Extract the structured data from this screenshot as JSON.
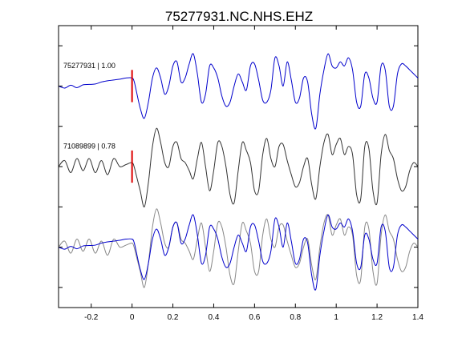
{
  "chart_data": {
    "type": "line",
    "title": "75277931.NC.NHS.EHZ",
    "xlabel": "",
    "ylabel": "",
    "xlim": [
      -0.36,
      1.4
    ],
    "xticks": [
      -0.2,
      0,
      0.2,
      0.4,
      0.6,
      0.8,
      1,
      1.2,
      1.4
    ],
    "xtick_labels": [
      "-0.2",
      "0",
      "0.2",
      "0.4",
      "0.6",
      "0.8",
      "1",
      "1.2",
      "1.4"
    ],
    "ylim": [
      0,
      7
    ],
    "yticks": [
      0.5,
      1.5,
      2.5,
      3.5,
      4.5,
      5.5,
      6.5
    ],
    "grid": false,
    "legend": "none",
    "pick_time": 0,
    "colors": {
      "template": "#0000cc",
      "match": "#333333",
      "overlay_match": "#888888",
      "pick": "#dd0000"
    },
    "traces": [
      {
        "label": "75277931 | 1.00",
        "baseline": 5.5,
        "color": "#0000cc",
        "x": [
          -0.36,
          -0.33,
          -0.3,
          -0.27,
          -0.24,
          -0.21,
          -0.18,
          -0.15,
          -0.12,
          -0.09,
          -0.06,
          -0.03,
          0,
          0.01,
          0.02,
          0.04,
          0.06,
          0.08,
          0.1,
          0.12,
          0.14,
          0.16,
          0.18,
          0.2,
          0.22,
          0.24,
          0.26,
          0.28,
          0.3,
          0.32,
          0.34,
          0.36,
          0.38,
          0.4,
          0.42,
          0.44,
          0.46,
          0.48,
          0.5,
          0.52,
          0.54,
          0.56,
          0.58,
          0.6,
          0.62,
          0.64,
          0.66,
          0.68,
          0.7,
          0.72,
          0.74,
          0.76,
          0.78,
          0.8,
          0.82,
          0.84,
          0.86,
          0.88,
          0.9,
          0.92,
          0.94,
          0.96,
          0.98,
          1,
          1.02,
          1.04,
          1.06,
          1.08,
          1.1,
          1.12,
          1.14,
          1.16,
          1.18,
          1.2,
          1.22,
          1.24,
          1.26,
          1.28,
          1.3,
          1.32,
          1.34,
          1.36,
          1.38,
          1.4
        ],
        "y": [
          0,
          -0.05,
          0.02,
          -0.04,
          0.03,
          0.04,
          0.05,
          0.1,
          0.13,
          0.15,
          0.17,
          0.2,
          0.2,
          0.12,
          -0.1,
          -0.55,
          -0.8,
          -0.4,
          0.2,
          0.45,
          0.2,
          -0.2,
          0.0,
          0.5,
          0.6,
          0.1,
          0.2,
          0.55,
          0.8,
          0.3,
          -0.4,
          -0.2,
          0.5,
          0.45,
          0.2,
          -0.25,
          -0.5,
          -0.4,
          0.0,
          0.3,
          0.1,
          -0.1,
          0.5,
          0.55,
          0.15,
          -0.35,
          -0.4,
          -0.1,
          0.7,
          0.5,
          0.0,
          0.6,
          0.15,
          -0.4,
          -0.3,
          0.2,
          0.1,
          -0.7,
          -1.05,
          -0.2,
          0.4,
          0.8,
          0.5,
          0.45,
          0.6,
          0.5,
          0.7,
          0.4,
          -0.4,
          -0.5,
          0.3,
          0.2,
          -0.3,
          -0.4,
          0.5,
          0.4,
          -0.5,
          -0.5,
          0.3,
          0.55,
          0.5,
          0.4,
          0.3,
          0.2
        ]
      },
      {
        "label": "71089899 | 0.78",
        "baseline": 3.5,
        "color": "#333333",
        "x": [
          -0.36,
          -0.33,
          -0.3,
          -0.27,
          -0.24,
          -0.21,
          -0.18,
          -0.15,
          -0.12,
          -0.09,
          -0.06,
          -0.03,
          0,
          0.01,
          0.02,
          0.04,
          0.06,
          0.08,
          0.1,
          0.12,
          0.14,
          0.16,
          0.18,
          0.2,
          0.22,
          0.24,
          0.26,
          0.28,
          0.3,
          0.32,
          0.34,
          0.36,
          0.38,
          0.4,
          0.42,
          0.44,
          0.46,
          0.48,
          0.5,
          0.52,
          0.54,
          0.56,
          0.58,
          0.6,
          0.62,
          0.64,
          0.66,
          0.68,
          0.7,
          0.72,
          0.74,
          0.76,
          0.78,
          0.8,
          0.82,
          0.84,
          0.86,
          0.88,
          0.9,
          0.92,
          0.94,
          0.96,
          0.98,
          1,
          1.02,
          1.04,
          1.06,
          1.08,
          1.1,
          1.12,
          1.14,
          1.16,
          1.18,
          1.2,
          1.22,
          1.24,
          1.26,
          1.28,
          1.3,
          1.32,
          1.34,
          1.36,
          1.38,
          1.4
        ],
        "y": [
          0.0,
          0.15,
          -0.15,
          0.2,
          -0.1,
          0.2,
          -0.15,
          0.15,
          -0.2,
          0.2,
          0.0,
          0.05,
          0.1,
          0.0,
          -0.2,
          -0.6,
          -1.0,
          -0.4,
          0.5,
          0.95,
          0.6,
          0.1,
          0.0,
          0.5,
          0.6,
          0.2,
          0.1,
          -0.1,
          -0.3,
          0.2,
          0.6,
          0.0,
          -0.6,
          -0.1,
          0.6,
          0.5,
          0.0,
          -0.7,
          -0.9,
          -0.1,
          0.6,
          0.4,
          0.1,
          -0.6,
          -0.6,
          0.3,
          0.7,
          0.2,
          0.0,
          0.5,
          0.55,
          0.15,
          -0.2,
          -0.5,
          -0.4,
          0.0,
          0.2,
          -0.45,
          -0.8,
          0.0,
          0.6,
          0.8,
          0.3,
          0.55,
          0.7,
          0.3,
          0.5,
          0.3,
          -0.7,
          -0.8,
          0.5,
          0.45,
          -0.6,
          -0.9,
          0.3,
          0.8,
          0.4,
          0.2,
          -0.3,
          -0.6,
          -0.5,
          -0.1,
          0.1,
          0.0
        ]
      },
      {
        "label": "",
        "baseline": 1.5,
        "color": "#888888",
        "x": [
          -0.36,
          -0.33,
          -0.3,
          -0.27,
          -0.24,
          -0.21,
          -0.18,
          -0.15,
          -0.12,
          -0.09,
          -0.06,
          -0.03,
          0,
          0.01,
          0.02,
          0.04,
          0.06,
          0.08,
          0.1,
          0.12,
          0.14,
          0.16,
          0.18,
          0.2,
          0.22,
          0.24,
          0.26,
          0.28,
          0.3,
          0.32,
          0.34,
          0.36,
          0.38,
          0.4,
          0.42,
          0.44,
          0.46,
          0.48,
          0.5,
          0.52,
          0.54,
          0.56,
          0.58,
          0.6,
          0.62,
          0.64,
          0.66,
          0.68,
          0.7,
          0.72,
          0.74,
          0.76,
          0.78,
          0.8,
          0.82,
          0.84,
          0.86,
          0.88,
          0.9,
          0.92,
          0.94,
          0.96,
          0.98,
          1,
          1.02,
          1.04,
          1.06,
          1.08,
          1.1,
          1.12,
          1.14,
          1.16,
          1.18,
          1.2,
          1.22,
          1.24,
          1.26,
          1.28,
          1.3,
          1.32,
          1.34,
          1.36,
          1.38,
          1.4
        ],
        "y": [
          0.0,
          0.15,
          -0.15,
          0.2,
          -0.1,
          0.2,
          -0.15,
          0.15,
          -0.2,
          0.2,
          0.0,
          0.05,
          0.1,
          0.0,
          -0.2,
          -0.6,
          -1.0,
          -0.4,
          0.5,
          0.95,
          0.6,
          0.1,
          0.0,
          0.5,
          0.6,
          0.2,
          0.1,
          -0.1,
          -0.3,
          0.2,
          0.6,
          0.0,
          -0.6,
          -0.1,
          0.6,
          0.5,
          0.0,
          -0.7,
          -0.9,
          -0.1,
          0.6,
          0.4,
          0.1,
          -0.6,
          -0.6,
          0.3,
          0.7,
          0.2,
          0.0,
          0.5,
          0.55,
          0.15,
          -0.2,
          -0.5,
          -0.4,
          0.0,
          0.2,
          -0.45,
          -0.8,
          0.0,
          0.6,
          0.8,
          0.3,
          0.55,
          0.7,
          0.3,
          0.5,
          0.3,
          -0.7,
          -0.8,
          0.5,
          0.45,
          -0.6,
          -0.9,
          0.3,
          0.8,
          0.4,
          0.2,
          -0.3,
          -0.6,
          -0.5,
          -0.1,
          0.1,
          0.0
        ]
      },
      {
        "label": "",
        "baseline": 1.5,
        "color": "#0000cc",
        "x": [
          -0.36,
          -0.33,
          -0.3,
          -0.27,
          -0.24,
          -0.21,
          -0.18,
          -0.15,
          -0.12,
          -0.09,
          -0.06,
          -0.03,
          0,
          0.01,
          0.02,
          0.04,
          0.06,
          0.08,
          0.1,
          0.12,
          0.14,
          0.16,
          0.18,
          0.2,
          0.22,
          0.24,
          0.26,
          0.28,
          0.3,
          0.32,
          0.34,
          0.36,
          0.38,
          0.4,
          0.42,
          0.44,
          0.46,
          0.48,
          0.5,
          0.52,
          0.54,
          0.56,
          0.58,
          0.6,
          0.62,
          0.64,
          0.66,
          0.68,
          0.7,
          0.72,
          0.74,
          0.76,
          0.78,
          0.8,
          0.82,
          0.84,
          0.86,
          0.88,
          0.9,
          0.92,
          0.94,
          0.96,
          0.98,
          1,
          1.02,
          1.04,
          1.06,
          1.08,
          1.1,
          1.12,
          1.14,
          1.16,
          1.18,
          1.2,
          1.22,
          1.24,
          1.26,
          1.28,
          1.3,
          1.32,
          1.34,
          1.36,
          1.38,
          1.4
        ],
        "y": [
          0,
          -0.05,
          0.02,
          -0.04,
          0.03,
          0.04,
          0.05,
          0.1,
          0.13,
          0.15,
          0.17,
          0.2,
          0.2,
          0.12,
          -0.1,
          -0.55,
          -0.8,
          -0.4,
          0.2,
          0.45,
          0.2,
          -0.2,
          0.0,
          0.5,
          0.6,
          0.1,
          0.2,
          0.55,
          0.8,
          0.3,
          -0.4,
          -0.2,
          0.5,
          0.45,
          0.2,
          -0.25,
          -0.5,
          -0.4,
          0.0,
          0.3,
          0.1,
          -0.1,
          0.5,
          0.55,
          0.15,
          -0.35,
          -0.4,
          -0.1,
          0.7,
          0.5,
          0.0,
          0.6,
          0.15,
          -0.4,
          -0.3,
          0.2,
          0.1,
          -0.7,
          -1.05,
          -0.2,
          0.4,
          0.8,
          0.5,
          0.45,
          0.6,
          0.5,
          0.7,
          0.4,
          -0.4,
          -0.5,
          0.3,
          0.2,
          -0.3,
          -0.4,
          0.5,
          0.4,
          -0.5,
          -0.5,
          0.3,
          0.55,
          0.5,
          0.4,
          0.3,
          0.2
        ]
      }
    ],
    "picks": [
      {
        "time": 0,
        "baseline": 5.5,
        "half_height": 0.4,
        "color": "#dd0000"
      },
      {
        "time": 0,
        "baseline": 3.5,
        "half_height": 0.4,
        "color": "#dd0000"
      }
    ]
  }
}
